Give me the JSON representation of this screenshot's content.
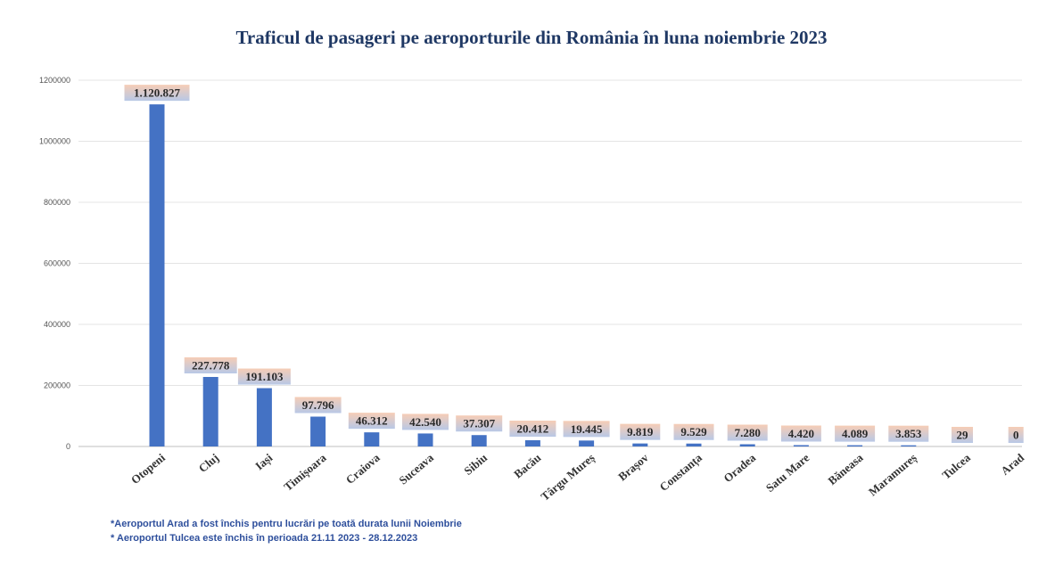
{
  "chart_data": {
    "type": "bar",
    "title": "Traficul de pasageri pe aeroporturile din România în luna noiembrie 2023",
    "xlabel": "",
    "ylabel": "",
    "ylim": [
      0,
      1200000
    ],
    "yticks": [
      "0",
      "200000",
      "400000",
      "600000",
      "800000",
      "1000000",
      "1200000"
    ],
    "ytick_values": [
      0,
      200000,
      400000,
      600000,
      800000,
      1000000,
      1200000
    ],
    "grid": true,
    "bar_color": "#4472c4",
    "label_bg_top": "#f6cdb6",
    "label_bg_bottom": "#b8c8e6",
    "categories": [
      "Otopeni",
      "Cluj",
      "Iași",
      "Timișoara",
      "Craiova",
      "Suceava",
      "Sibiu",
      "Bacău",
      "Târgu Mureș",
      "Brașov",
      "Constanța",
      "Oradea",
      "Satu Mare",
      "Băneasa",
      "Maramureș",
      "Tulcea",
      "Arad"
    ],
    "values": [
      1120827,
      227778,
      191103,
      97796,
      46312,
      42540,
      37307,
      20412,
      19445,
      9819,
      9529,
      7280,
      4420,
      4089,
      3853,
      29,
      0
    ],
    "data_labels": [
      "1.120.827",
      "227.778",
      "191.103",
      "97.796",
      "46.312",
      "42.540",
      "37.307",
      "20.412",
      "19.445",
      "9.819",
      "9.529",
      "7.280",
      "4.420",
      "4.089",
      "3.853",
      "29",
      "0"
    ]
  },
  "notes": [
    "*Aeroportul Arad a fost închis pentru lucrări pe toată durata lunii Noiembrie",
    "* Aeroportul Tulcea este închis în perioada 21.11 2023 - 28.12.2023"
  ]
}
